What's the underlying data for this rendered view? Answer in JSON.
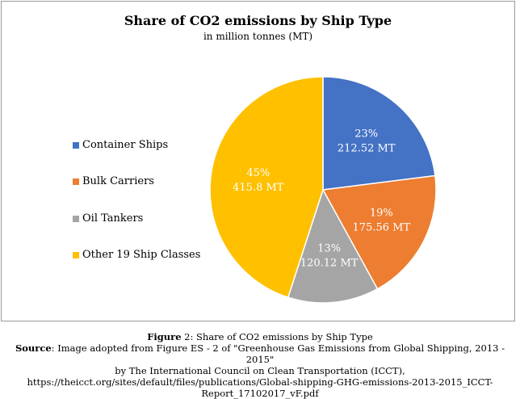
{
  "chart_data": {
    "type": "pie",
    "title": "Share of CO2 emissions by Ship Type",
    "subtitle": "in million tonnes (MT)",
    "legend_position": "left",
    "slices": [
      {
        "name": "Container Ships",
        "value": 212.52,
        "percent_label": "23%",
        "value_label": "212.52 MT",
        "color": "#4472C4"
      },
      {
        "name": "Bulk Carriers",
        "value": 175.56,
        "percent_label": "19%",
        "value_label": "175.56 MT",
        "color": "#ED7D31"
      },
      {
        "name": "Oil Tankers",
        "value": 120.12,
        "percent_label": "13%",
        "value_label": "120.12 MT",
        "color": "#A5A5A5"
      },
      {
        "name": "Other 19 Ship Classes",
        "value": 415.8,
        "percent_label": "45%",
        "value_label": "415.8 MT",
        "color": "#FFC000"
      }
    ]
  },
  "caption": {
    "figure_label": "Figure",
    "figure_text": " 2: Share of CO2 emissions by Ship Type",
    "source_label": "Source",
    "source_line1": ": Image adopted from Figure ES - 2 of \"Greenhouse Gas Emissions from Global Shipping, 2013 - 2015\"",
    "source_line2": "by The International Council on Clean Transportation (ICCT),",
    "source_line3": "https://theicct.org/sites/default/files/publications/Global-shipping-GHG-emissions-2013-2015_ICCT-",
    "source_line4": "Report_17102017_vF.pdf"
  }
}
